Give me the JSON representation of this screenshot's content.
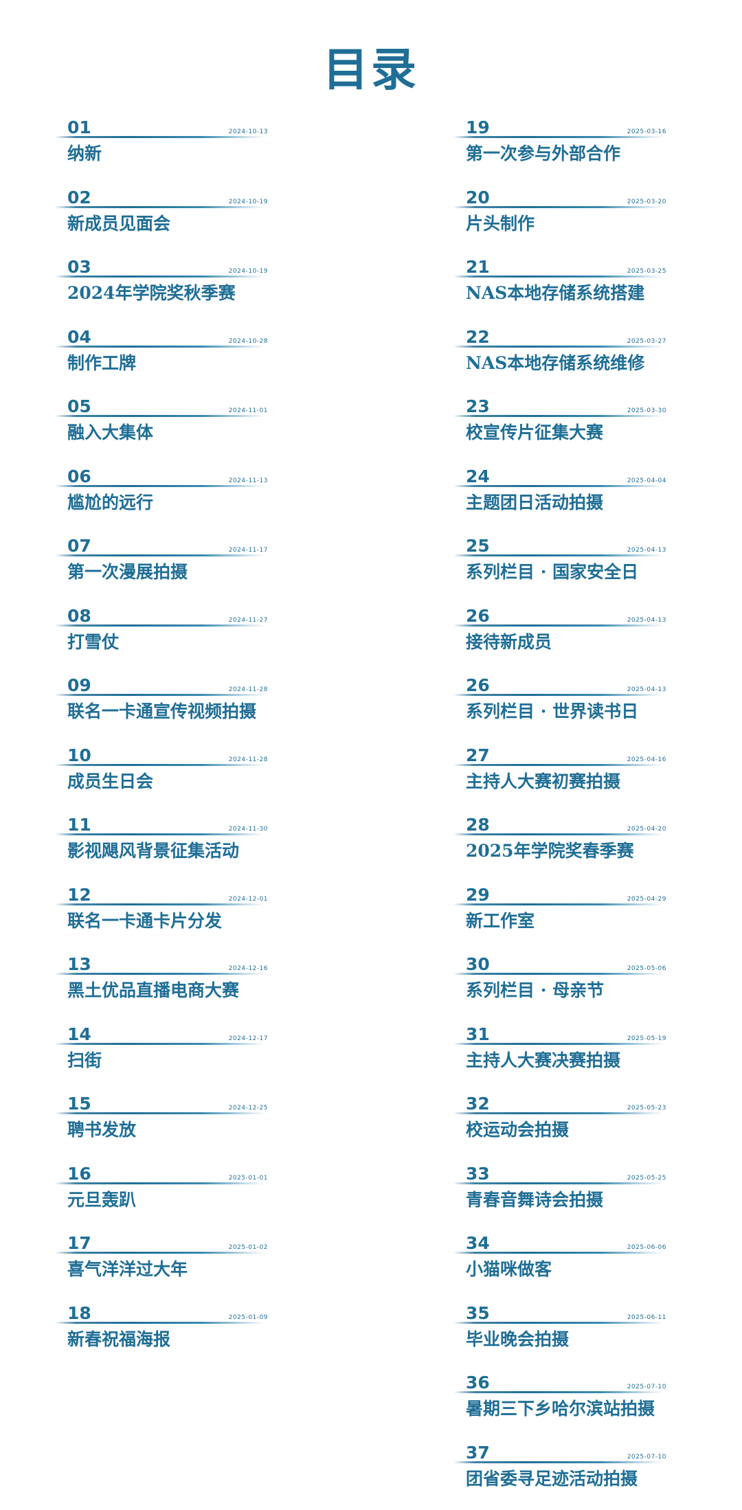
{
  "title": "目录",
  "left_column": [
    {
      "num": "01",
      "date": "2024-10-13",
      "label": "纳新"
    },
    {
      "num": "02",
      "date": "2024-10-19",
      "label": "新成员见面会"
    },
    {
      "num": "03",
      "date": "2024-10-19",
      "label": "2024年学院奖秋季赛"
    },
    {
      "num": "04",
      "date": "2024-10-28",
      "label": "制作工牌"
    },
    {
      "num": "05",
      "date": "2024-11-01",
      "label": "融入大集体"
    },
    {
      "num": "06",
      "date": "2024-11-13",
      "label": "尴尬的远行"
    },
    {
      "num": "07",
      "date": "2024-11-17",
      "label": "第一次漫展拍摄"
    },
    {
      "num": "08",
      "date": "2024-11-27",
      "label": "打雪仗"
    },
    {
      "num": "09",
      "date": "2024-11-28",
      "label": "联名一卡通宣传视频拍摄"
    },
    {
      "num": "10",
      "date": "2024-11-28",
      "label": "成员生日会"
    },
    {
      "num": "11",
      "date": "2024-11-30",
      "label": "影视飓风背景征集活动"
    },
    {
      "num": "12",
      "date": "2024-12-01",
      "label": "联名一卡通卡片分发"
    },
    {
      "num": "13",
      "date": "2024-12-16",
      "label": "黑土优品直播电商大赛"
    },
    {
      "num": "14",
      "date": "2024-12-17",
      "label": "扫街"
    },
    {
      "num": "15",
      "date": "2024-12-25",
      "label": "聘书发放"
    },
    {
      "num": "16",
      "date": "2025-01-01",
      "label": "元旦轰趴"
    },
    {
      "num": "17",
      "date": "2025-01-02",
      "label": "喜气洋洋过大年"
    },
    {
      "num": "18",
      "date": "2025-01-09",
      "label": "新春祝福海报"
    }
  ],
  "right_column": [
    {
      "num": "19",
      "date": "2025-03-16",
      "label": "第一次参与外部合作"
    },
    {
      "num": "20",
      "date": "2025-03-20",
      "label": "片头制作"
    },
    {
      "num": "21",
      "date": "2025-03-25",
      "label": "NAS本地存储系统搭建"
    },
    {
      "num": "22",
      "date": "2025-03-27",
      "label": "NAS本地存储系统维修"
    },
    {
      "num": "23",
      "date": "2025-03-30",
      "label": "校宣传片征集大赛"
    },
    {
      "num": "24",
      "date": "2025-04-04",
      "label": "主题团日活动拍摄"
    },
    {
      "num": "25",
      "date": "2025-04-13",
      "label": "系列栏目 · 国家安全日"
    },
    {
      "num": "26",
      "date": "2025-04-13",
      "label": "接待新成员"
    },
    {
      "num": "26",
      "date": "2025-04-13",
      "label": "系列栏目 · 世界读书日"
    },
    {
      "num": "27",
      "date": "2025-04-16",
      "label": "主持人大赛初赛拍摄"
    },
    {
      "num": "28",
      "date": "2025-04-20",
      "label": "2025年学院奖春季赛"
    },
    {
      "num": "29",
      "date": "2025-04-29",
      "label": "新工作室"
    },
    {
      "num": "30",
      "date": "2025-05-06",
      "label": "系列栏目 · 母亲节"
    },
    {
      "num": "31",
      "date": "2025-05-19",
      "label": "主持人大赛决赛拍摄"
    },
    {
      "num": "32",
      "date": "2025-05-23",
      "label": "校运动会拍摄"
    },
    {
      "num": "33",
      "date": "2025-05-25",
      "label": "青春音舞诗会拍摄"
    },
    {
      "num": "34",
      "date": "2025-06-06",
      "label": "小猫咪做客"
    },
    {
      "num": "35",
      "date": "2025-06-11",
      "label": "毕业晚会拍摄"
    },
    {
      "num": "36",
      "date": "2025-07-10",
      "label": "暑期三下乡哈尔滨站拍摄"
    },
    {
      "num": "37",
      "date": "2025-07-10",
      "label": "团省委寻足迹活动拍摄"
    }
  ]
}
